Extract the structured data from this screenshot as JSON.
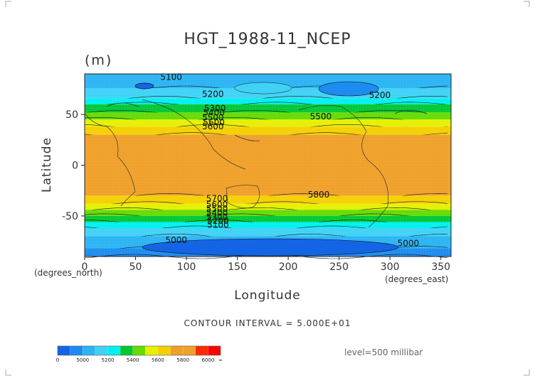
{
  "chart_data": {
    "type": "heatmap",
    "title": "HGT_1988-11_NCEP",
    "units": "(m)",
    "xlabel": "Longitude",
    "ylabel": "Latitude",
    "x_unit_note": "(degrees_east)",
    "y_unit_note": "(degrees_north)",
    "xlim": [
      0,
      360
    ],
    "ylim": [
      -90,
      90
    ],
    "x_ticks": [
      0,
      50,
      100,
      150,
      200,
      250,
      300,
      350
    ],
    "y_ticks": [
      50,
      0,
      -50
    ],
    "contour_interval_text": "CONTOUR INTERVAL = 5.000E+01",
    "level_text": "level=500 millibar",
    "color_levels": [
      {
        "from": 0,
        "to": 5000,
        "color": "#1464e6"
      },
      {
        "from": 5000,
        "to": 5100,
        "color": "#1c8cf0"
      },
      {
        "from": 5100,
        "to": 5200,
        "color": "#2ab4f4"
      },
      {
        "from": 5200,
        "to": 5300,
        "color": "#3fd2f6"
      },
      {
        "from": 5300,
        "to": 5400,
        "color": "#00f0f0"
      },
      {
        "from": 5400,
        "to": 5500,
        "color": "#00c832"
      },
      {
        "from": 5500,
        "to": 5600,
        "color": "#64dc00"
      },
      {
        "from": 5600,
        "to": 5700,
        "color": "#e6f000"
      },
      {
        "from": 5700,
        "to": 5800,
        "color": "#f5d000"
      },
      {
        "from": 5800,
        "to": 5900,
        "color": "#f0a028"
      },
      {
        "from": 5900,
        "to": 6000,
        "color": "#f0a028"
      },
      {
        "from": 6000,
        "to": 6100,
        "color": "#ff2a00"
      },
      {
        "from": 6100,
        "to": 6200,
        "color": "#ff0000"
      }
    ],
    "colorbar_labels": [
      "0",
      "5000",
      "5200",
      "5400",
      "5600",
      "5800",
      "6000",
      "∞"
    ],
    "zonal_bands": [
      {
        "lat_from": 90,
        "lat_to": 76,
        "value": 5150
      },
      {
        "lat_from": 76,
        "lat_to": 66,
        "value": 5250
      },
      {
        "lat_from": 66,
        "lat_to": 60,
        "value": 5350
      },
      {
        "lat_from": 60,
        "lat_to": 52,
        "value": 5450
      },
      {
        "lat_from": 52,
        "lat_to": 45,
        "value": 5550
      },
      {
        "lat_from": 45,
        "lat_to": 38,
        "value": 5650
      },
      {
        "lat_from": 38,
        "lat_to": 30,
        "value": 5750
      },
      {
        "lat_from": 30,
        "lat_to": -30,
        "value": 5850
      },
      {
        "lat_from": -30,
        "lat_to": -38,
        "value": 5750
      },
      {
        "lat_from": -38,
        "lat_to": -44,
        "value": 5650
      },
      {
        "lat_from": -44,
        "lat_to": -50,
        "value": 5550
      },
      {
        "lat_from": -50,
        "lat_to": -56,
        "value": 5450
      },
      {
        "lat_from": -56,
        "lat_to": -62,
        "value": 5350
      },
      {
        "lat_from": -62,
        "lat_to": -70,
        "value": 5250
      },
      {
        "lat_from": -70,
        "lat_to": -82,
        "value": 5150
      },
      {
        "lat_from": -82,
        "lat_to": -90,
        "value": 5050
      }
    ],
    "contour_labels": [
      {
        "text": "5100",
        "lon": 85,
        "lat": 87
      },
      {
        "text": "5200",
        "lon": 126,
        "lat": 70
      },
      {
        "text": "5200",
        "lon": 290,
        "lat": 69
      },
      {
        "text": "5300",
        "lon": 128,
        "lat": 56
      },
      {
        "text": "5400",
        "lon": 127,
        "lat": 52
      },
      {
        "text": "5500",
        "lon": 126,
        "lat": 47
      },
      {
        "text": "5600",
        "lon": 127,
        "lat": 42
      },
      {
        "text": "5600",
        "lon": 126,
        "lat": 38
      },
      {
        "text": "5500",
        "lon": 232,
        "lat": 48
      },
      {
        "text": "5800",
        "lon": 230,
        "lat": -29
      },
      {
        "text": "5700",
        "lon": 130,
        "lat": -33
      },
      {
        "text": "5600",
        "lon": 130,
        "lat": -39
      },
      {
        "text": "5500",
        "lon": 130,
        "lat": -43
      },
      {
        "text": "5400",
        "lon": 130,
        "lat": -47
      },
      {
        "text": "5300",
        "lon": 130,
        "lat": -51
      },
      {
        "text": "5200",
        "lon": 131,
        "lat": -55
      },
      {
        "text": "5100",
        "lon": 131,
        "lat": -59
      },
      {
        "text": "5000",
        "lon": 90,
        "lat": -74
      },
      {
        "text": "5000",
        "lon": 318,
        "lat": -77
      }
    ]
  }
}
